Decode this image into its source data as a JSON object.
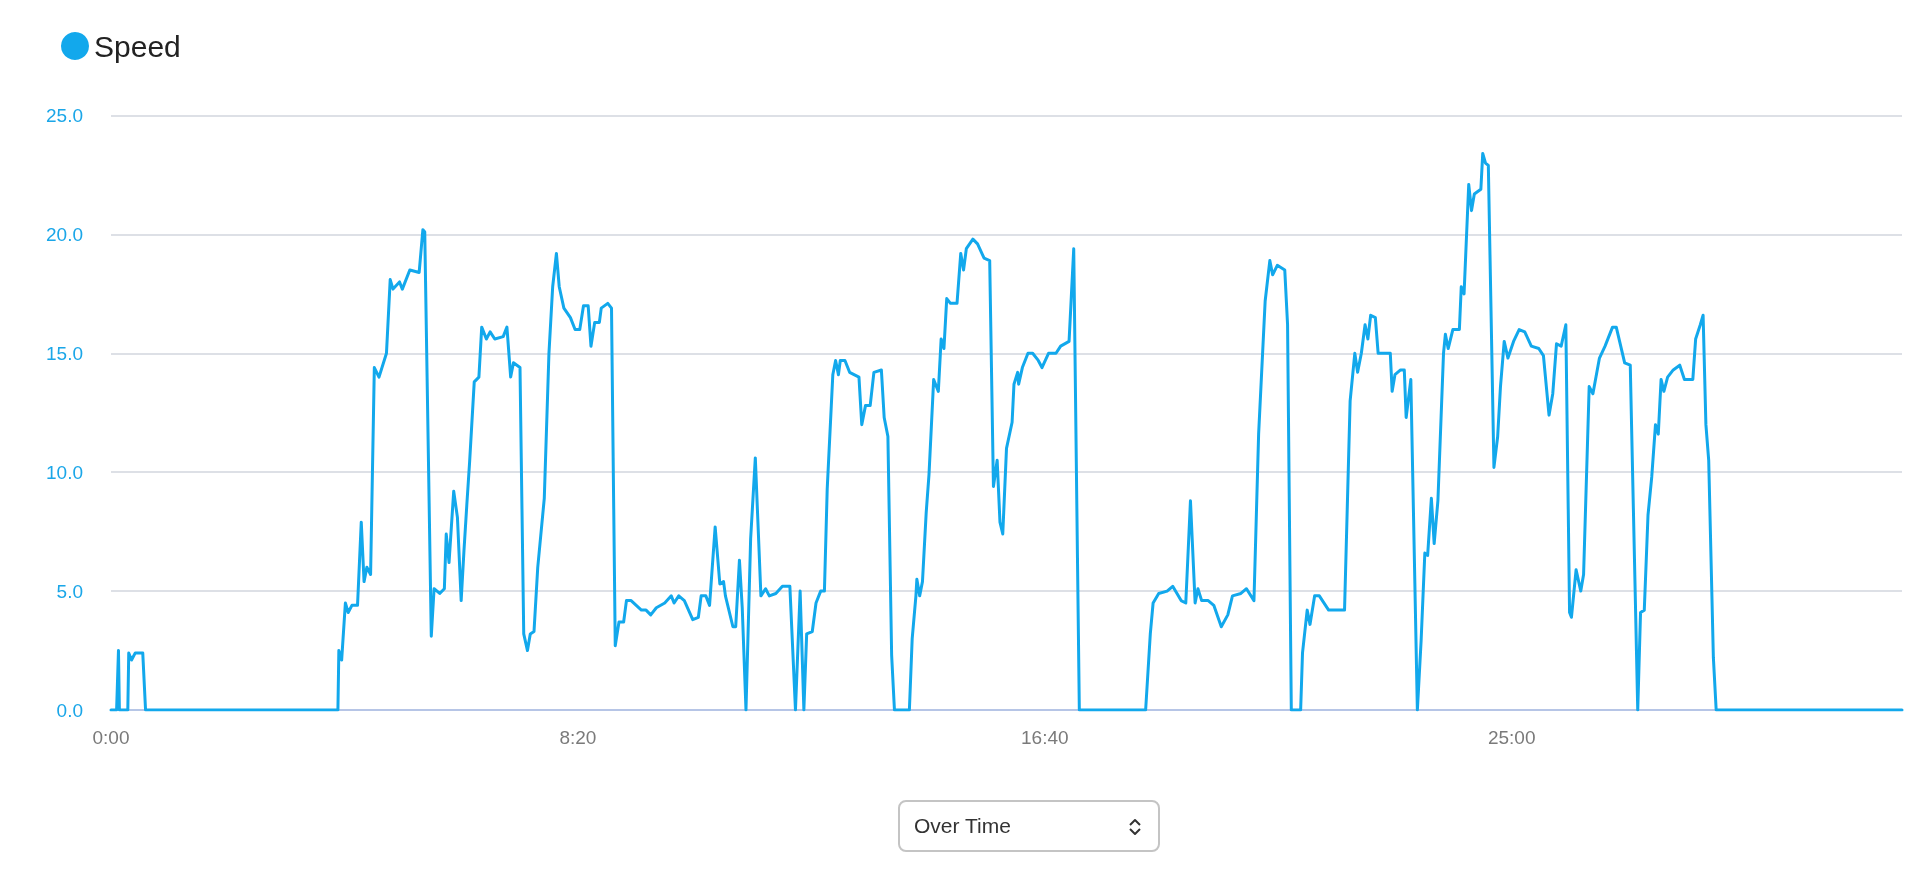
{
  "chart_data": {
    "type": "line",
    "legend": "top left",
    "grid": "y",
    "marker": "none",
    "line_style": "solid",
    "annotations": [
      "Over Time"
    ],
    "xlim": [
      0,
      1918
    ],
    "xticks": [
      {
        "value": 0,
        "label": "0:00"
      },
      {
        "value": 500,
        "label": "8:20"
      },
      {
        "value": 1000,
        "label": "16:40"
      },
      {
        "value": 1500,
        "label": "25:00"
      }
    ],
    "ylim": [
      0,
      25
    ],
    "yticks": [
      {
        "value": 0,
        "label": "0.0"
      },
      {
        "value": 5,
        "label": "5.0"
      },
      {
        "value": 10,
        "label": "10.0"
      },
      {
        "value": 15,
        "label": "15.0"
      },
      {
        "value": 20,
        "label": "20.0"
      },
      {
        "value": 25,
        "label": "25.0"
      }
    ],
    "series": [
      {
        "name": "Speed",
        "color": "#12a8ec",
        "x": [
          0,
          6,
          8,
          9,
          18,
          19,
          22,
          26,
          34,
          37,
          243,
          244,
          247,
          251,
          254,
          258,
          264,
          268,
          271,
          274,
          278,
          282,
          287,
          295,
          299,
          302,
          309,
          312,
          320,
          330,
          334,
          336,
          343,
          346,
          352,
          357,
          359,
          362,
          367,
          371,
          375,
          378,
          381,
          384,
          389,
          394,
          397,
          402,
          406,
          411,
          420,
          424,
          428,
          431,
          438,
          442,
          446,
          449,
          453,
          457,
          464,
          469,
          473,
          477,
          480,
          485,
          492,
          497,
          502,
          506,
          511,
          514,
          518,
          523,
          525,
          532,
          536,
          540,
          544,
          549,
          552,
          557,
          568,
          573,
          578,
          584,
          593,
          600,
          603,
          608,
          614,
          623,
          629,
          632,
          637,
          641,
          647,
          652,
          656,
          658,
          666,
          669,
          673,
          676,
          680,
          685,
          690,
          696,
          701,
          705,
          712,
          719,
          727,
          733,
          738,
          742,
          745,
          751,
          755,
          760,
          764,
          767,
          773,
          776,
          779,
          781,
          786,
          791,
          801,
          804,
          808,
          813,
          817,
          825,
          828,
          832,
          836,
          839,
          855,
          858,
          862,
          863,
          866,
          869,
          873,
          876,
          881,
          886,
          889,
          892,
          895,
          899,
          906,
          910,
          913,
          916,
          923,
          928,
          935,
          941,
          945,
          949,
          952,
          955,
          959,
          965,
          967,
          971,
          972,
          976,
          982,
          987,
          993,
          997,
          1004,
          1012,
          1017,
          1026,
          1031,
          1035,
          1037,
          1108,
          1113,
          1116,
          1122,
          1131,
          1137,
          1146,
          1151,
          1156,
          1161,
          1164,
          1168,
          1175,
          1181,
          1189,
          1196,
          1201,
          1210,
          1216,
          1224,
          1229,
          1236,
          1241,
          1244,
          1249,
          1257,
          1260,
          1264,
          1274,
          1276,
          1281,
          1284,
          1289,
          1294,
          1304,
          1321,
          1327,
          1332,
          1335,
          1339,
          1343,
          1346,
          1349,
          1354,
          1357,
          1370,
          1372,
          1375,
          1381,
          1385,
          1387,
          1392,
          1399,
          1403,
          1407,
          1410,
          1414,
          1417,
          1421,
          1427,
          1429,
          1432,
          1437,
          1444,
          1446,
          1449,
          1454,
          1457,
          1460,
          1467,
          1469,
          1472,
          1475,
          1481,
          1485,
          1488,
          1492,
          1496,
          1502,
          1508,
          1514,
          1521,
          1529,
          1534,
          1540,
          1544,
          1548,
          1553,
          1558,
          1562,
          1564,
          1569,
          1574,
          1577,
          1583,
          1587,
          1594,
          1600,
          1608,
          1612,
          1621,
          1627,
          1635,
          1638,
          1642,
          1646,
          1650,
          1654,
          1657,
          1660,
          1663,
          1667,
          1673,
          1680,
          1685,
          1694,
          1697,
          1702,
          1705,
          1708,
          1711,
          1716,
          1719,
          1918
        ],
        "values": [
          0,
          0,
          2.5,
          0,
          0,
          2.4,
          2.1,
          2.4,
          2.4,
          0,
          0,
          2.5,
          2.1,
          4.5,
          4.1,
          4.4,
          4.4,
          7.9,
          5.4,
          6.0,
          5.7,
          14.4,
          14.0,
          15.0,
          18.1,
          17.7,
          18.0,
          17.7,
          18.5,
          18.4,
          20.2,
          20.1,
          3.1,
          5.1,
          4.9,
          5.1,
          7.4,
          6.2,
          9.2,
          8.1,
          4.6,
          6.7,
          8.6,
          10.4,
          13.8,
          14.0,
          16.1,
          15.6,
          15.9,
          15.6,
          15.7,
          16.1,
          14.0,
          14.6,
          14.4,
          3.2,
          2.5,
          3.2,
          3.3,
          6.0,
          8.9,
          15.0,
          17.8,
          19.2,
          17.8,
          16.9,
          16.5,
          16.0,
          16.0,
          17.0,
          17.0,
          15.3,
          16.3,
          16.3,
          16.9,
          17.1,
          16.9,
          2.7,
          3.7,
          3.7,
          4.6,
          4.6,
          4.2,
          4.2,
          4.0,
          4.3,
          4.5,
          4.8,
          4.5,
          4.8,
          4.6,
          3.8,
          3.9,
          4.8,
          4.8,
          4.4,
          7.7,
          5.3,
          5.4,
          4.8,
          3.5,
          3.5,
          6.3,
          4.3,
          0,
          7.2,
          10.6,
          4.8,
          5.1,
          4.8,
          4.9,
          5.2,
          5.2,
          0,
          5.0,
          0,
          3.2,
          3.3,
          4.5,
          5.0,
          5.0,
          9.3,
          14.1,
          14.7,
          14.1,
          14.7,
          14.7,
          14.2,
          14.0,
          12.0,
          12.8,
          12.8,
          14.2,
          14.3,
          12.3,
          11.5,
          2.3,
          0,
          0,
          3.0,
          4.8,
          5.5,
          4.8,
          5.4,
          8.3,
          9.9,
          13.9,
          13.4,
          15.6,
          15.2,
          17.3,
          17.1,
          17.1,
          19.2,
          18.5,
          19.4,
          19.8,
          19.6,
          19.0,
          18.9,
          9.4,
          10.5,
          7.9,
          7.4,
          11.0,
          12.1,
          13.7,
          14.2,
          13.7,
          14.4,
          15.0,
          15.0,
          14.7,
          14.4,
          15.0,
          15.0,
          15.3,
          15.5,
          19.4,
          6.4,
          0,
          0,
          3.2,
          4.5,
          4.9,
          5.0,
          5.2,
          4.6,
          4.5,
          8.8,
          4.5,
          5.1,
          4.6,
          4.6,
          4.4,
          3.5,
          4.0,
          4.8,
          4.9,
          5.1,
          4.6,
          11.6,
          17.2,
          18.9,
          18.3,
          18.7,
          18.5,
          16.2,
          0,
          0,
          2.4,
          4.2,
          3.6,
          4.8,
          4.8,
          4.2,
          4.2,
          13.0,
          15.0,
          14.2,
          15.0,
          16.2,
          15.6,
          16.6,
          16.5,
          15.0,
          15.0,
          13.4,
          14.1,
          14.3,
          14.3,
          12.3,
          13.9,
          0,
          2.9,
          6.6,
          6.5,
          8.9,
          7.0,
          8.8,
          15.0,
          15.8,
          15.2,
          16.0,
          16.0,
          17.8,
          17.5,
          22.1,
          21.0,
          21.7,
          21.9,
          23.4,
          23.0,
          22.9,
          10.2,
          11.5,
          13.6,
          15.5,
          14.8,
          15.5,
          16.0,
          15.9,
          15.3,
          15.2,
          14.9,
          12.4,
          13.3,
          15.4,
          15.3,
          16.2,
          4.1,
          3.9,
          5.9,
          5.0,
          5.7,
          13.6,
          13.3,
          14.8,
          15.3,
          16.1,
          16.1,
          14.6,
          14.5,
          0,
          4.1,
          4.2,
          8.2,
          9.8,
          12.0,
          11.6,
          13.9,
          13.4,
          14.0,
          14.3,
          14.5,
          13.9,
          13.9,
          15.6,
          16.2,
          16.6,
          12.0,
          10.5,
          2.2,
          0,
          0
        ]
      }
    ]
  }
}
